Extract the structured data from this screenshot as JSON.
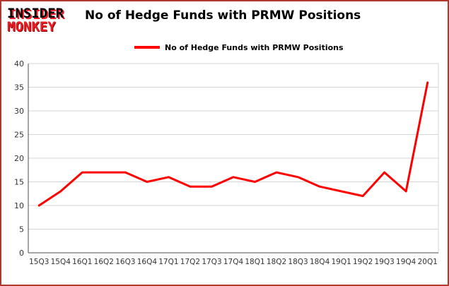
{
  "header": {
    "logo_line1": "INSIDER",
    "logo_line2": "MONKEY",
    "title": "No of Hedge Funds with PRMW Positions"
  },
  "legend": {
    "label": "No of Hedge Funds with PRMW Positions"
  },
  "colors": {
    "line": "#fe0000",
    "logo_red": "#ed1c24",
    "frame_border": "#b03a30",
    "gridline": "#d6d6d6",
    "axis": "#4d4d4d",
    "tick_text": "#333333"
  },
  "chart_data": {
    "type": "line",
    "title": "No of Hedge Funds with PRMW Positions",
    "series_name": "No of Hedge Funds with PRMW Positions",
    "categories": [
      "15Q3",
      "15Q4",
      "16Q1",
      "16Q2",
      "16Q3",
      "16Q4",
      "17Q1",
      "17Q2",
      "17Q3",
      "17Q4",
      "18Q1",
      "18Q2",
      "18Q3",
      "18Q4",
      "19Q1",
      "19Q2",
      "19Q3",
      "19Q4",
      "20Q1"
    ],
    "values": [
      10,
      13,
      17,
      17,
      17,
      15,
      16,
      14,
      14,
      16,
      15,
      17,
      16,
      14,
      13,
      12,
      17,
      13,
      36
    ],
    "xlabel": "",
    "ylabel": "",
    "ylim": [
      0,
      40
    ],
    "ytick_step": 5,
    "yticks": [
      0,
      5,
      10,
      15,
      20,
      25,
      30,
      35,
      40
    ],
    "grid": true,
    "legend_position": "top-left"
  }
}
